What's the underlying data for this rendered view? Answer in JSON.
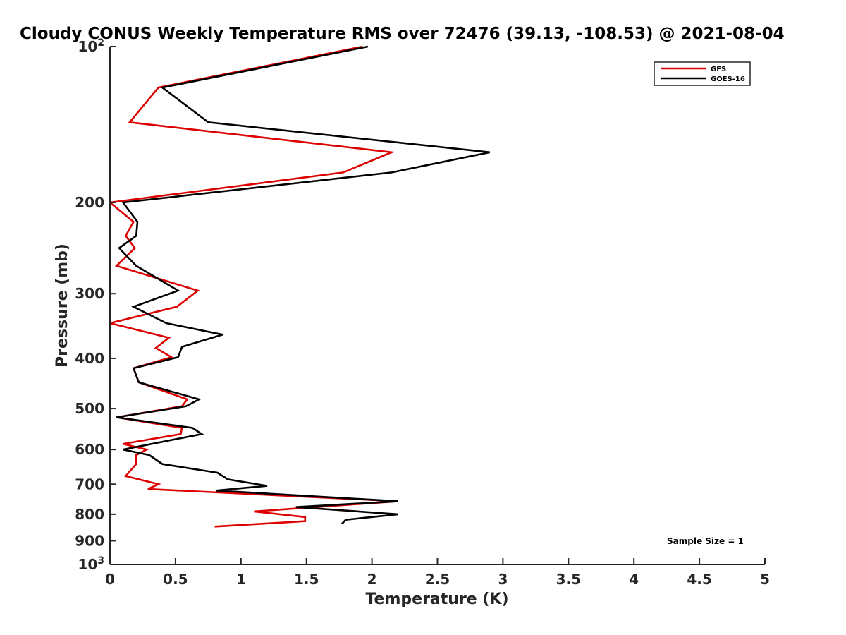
{
  "chart_data": {
    "type": "line",
    "title": "Cloudy CONUS Weekly Temperature RMS over 72476 (39.13, -108.53) @ 2021-08-04",
    "xlabel": "Temperature (K)",
    "ylabel": "Pressure (mb)",
    "xlim": [
      0,
      5
    ],
    "ylim": [
      100,
      1000
    ],
    "y_scale": "log",
    "y_reversed": true,
    "x_ticks": [
      0,
      0.5,
      1,
      1.5,
      2,
      2.5,
      3,
      3.5,
      4,
      4.5,
      5
    ],
    "x_tick_labels": [
      "0",
      "0.5",
      "1",
      "1.5",
      "2",
      "2.5",
      "3",
      "3.5",
      "4",
      "4.5",
      "5"
    ],
    "y_ticks": [
      100,
      200,
      300,
      400,
      500,
      600,
      700,
      800,
      900,
      1000
    ],
    "y_tick_labels": [
      {
        "base": "10",
        "exp": "2"
      },
      {
        "base": "200",
        "exp": ""
      },
      {
        "base": "300",
        "exp": ""
      },
      {
        "base": "400",
        "exp": ""
      },
      {
        "base": "500",
        "exp": ""
      },
      {
        "base": "600",
        "exp": ""
      },
      {
        "base": "700",
        "exp": ""
      },
      {
        "base": "800",
        "exp": ""
      },
      {
        "base": "900",
        "exp": ""
      },
      {
        "base": "10",
        "exp": "3"
      }
    ],
    "grid": false,
    "legend_position": "top-right",
    "series": [
      {
        "name": "GFS",
        "color": "#dd0000",
        "points": [
          [
            1.93,
            100
          ],
          [
            0.37,
            120
          ],
          [
            0.15,
            140
          ],
          [
            2.15,
            160
          ],
          [
            1.78,
            175
          ],
          [
            0.0,
            200
          ],
          [
            0.18,
            218
          ],
          [
            0.12,
            232
          ],
          [
            0.19,
            245
          ],
          [
            0.05,
            265
          ],
          [
            0.67,
            296
          ],
          [
            0.51,
            318
          ],
          [
            0.0,
            342
          ],
          [
            0.45,
            365
          ],
          [
            0.35,
            382
          ],
          [
            0.47,
            398
          ],
          [
            0.18,
            418
          ],
          [
            0.22,
            445
          ],
          [
            0.59,
            480
          ],
          [
            0.55,
            495
          ],
          [
            0.05,
            520
          ],
          [
            0.55,
            545
          ],
          [
            0.54,
            560
          ],
          [
            0.1,
            585
          ],
          [
            0.28,
            600
          ],
          [
            0.2,
            615
          ],
          [
            0.2,
            640
          ],
          [
            0.12,
            675
          ],
          [
            0.37,
            700
          ],
          [
            0.29,
            715
          ],
          [
            2.2,
            755
          ],
          [
            1.1,
            790
          ],
          [
            1.49,
            810
          ],
          [
            1.49,
            825
          ],
          [
            0.8,
            845
          ]
        ]
      },
      {
        "name": "GOES-16",
        "color": "#000000",
        "points": [
          [
            1.97,
            100
          ],
          [
            0.4,
            120
          ],
          [
            0.75,
            140
          ],
          [
            2.9,
            160
          ],
          [
            2.15,
            175
          ],
          [
            0.1,
            200
          ],
          [
            0.21,
            218
          ],
          [
            0.2,
            232
          ],
          [
            0.07,
            245
          ],
          [
            0.2,
            265
          ],
          [
            0.52,
            296
          ],
          [
            0.18,
            318
          ],
          [
            0.43,
            342
          ],
          [
            0.86,
            360
          ],
          [
            0.55,
            380
          ],
          [
            0.52,
            398
          ],
          [
            0.18,
            418
          ],
          [
            0.22,
            445
          ],
          [
            0.68,
            480
          ],
          [
            0.58,
            495
          ],
          [
            0.05,
            520
          ],
          [
            0.63,
            545
          ],
          [
            0.7,
            560
          ],
          [
            0.1,
            600
          ],
          [
            0.3,
            615
          ],
          [
            0.4,
            640
          ],
          [
            0.82,
            665
          ],
          [
            0.9,
            685
          ],
          [
            1.2,
            705
          ],
          [
            0.81,
            720
          ],
          [
            2.2,
            755
          ],
          [
            1.42,
            775
          ],
          [
            2.2,
            800
          ],
          [
            1.8,
            820
          ],
          [
            1.77,
            835
          ]
        ]
      }
    ],
    "annotation": "Sample Size = 1"
  }
}
